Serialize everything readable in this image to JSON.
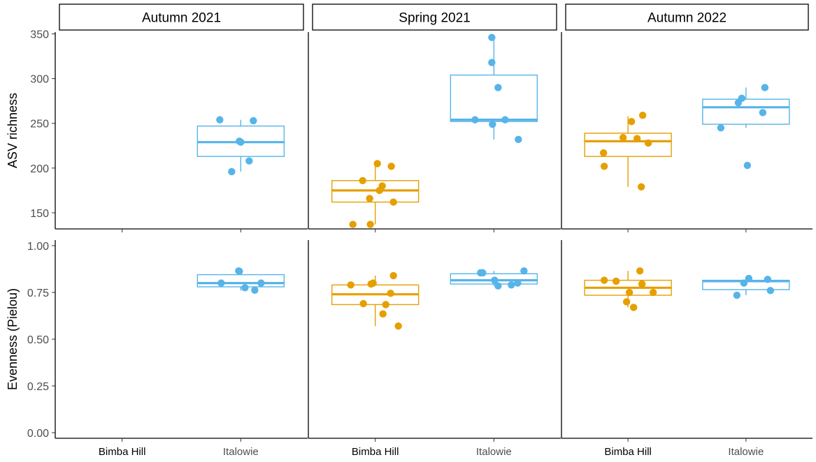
{
  "chart_data": {
    "type": "boxplot",
    "facet_titles": [
      "Autumn 2021",
      "Spring 2021",
      "Autumn 2022"
    ],
    "categories": [
      "Bimba Hill",
      "Italowie"
    ],
    "series_colors": {
      "Bimba Hill": "#E69F00",
      "Italowie": "#56B4E9"
    },
    "rows": [
      {
        "ylabel": "ASV richness",
        "ylim": [
          132,
          352
        ],
        "ticks": [
          150,
          200,
          250,
          300,
          350
        ],
        "tick_labels": [
          "150",
          "200",
          "250",
          "300",
          "350"
        ],
        "panels": [
          {
            "facet": "Autumn 2021",
            "groups": [
              {
                "category": "Bimba Hill",
                "box": null,
                "points": []
              },
              {
                "category": "Italowie",
                "box": {
                  "q1": 213,
                  "median": 229,
                  "q3": 247,
                  "whisker_low": 196,
                  "whisker_high": 254
                },
                "points": [
                  [
                    -0.3,
                    254
                  ],
                  [
                    -0.13,
                    196
                  ],
                  [
                    -0.02,
                    230
                  ],
                  [
                    0.0,
                    229
                  ],
                  [
                    0.12,
                    208
                  ],
                  [
                    0.18,
                    253
                  ]
                ]
              }
            ]
          },
          {
            "facet": "Spring 2021",
            "groups": [
              {
                "category": "Bimba Hill",
                "box": {
                  "q1": 162,
                  "median": 175,
                  "q3": 186,
                  "whisker_low": 137,
                  "whisker_high": 205
                },
                "points": [
                  [
                    -0.32,
                    137
                  ],
                  [
                    -0.18,
                    186
                  ],
                  [
                    -0.07,
                    137
                  ],
                  [
                    -0.08,
                    166
                  ],
                  [
                    0.03,
                    205
                  ],
                  [
                    0.06,
                    175
                  ],
                  [
                    0.1,
                    180
                  ],
                  [
                    0.23,
                    202
                  ],
                  [
                    0.26,
                    162
                  ]
                ]
              },
              {
                "category": "Italowie",
                "box": {
                  "q1": 252,
                  "median": 254,
                  "q3": 304,
                  "whisker_low": 232,
                  "whisker_high": 346
                },
                "points": [
                  [
                    -0.27,
                    254
                  ],
                  [
                    -0.03,
                    346
                  ],
                  [
                    -0.03,
                    318
                  ],
                  [
                    -0.02,
                    249
                  ],
                  [
                    0.06,
                    290
                  ],
                  [
                    0.16,
                    254
                  ],
                  [
                    0.35,
                    232
                  ]
                ]
              }
            ]
          },
          {
            "facet": "Autumn 2022",
            "groups": [
              {
                "category": "Bimba Hill",
                "box": {
                  "q1": 213,
                  "median": 230,
                  "q3": 239,
                  "whisker_low": 179,
                  "whisker_high": 258
                },
                "points": [
                  [
                    -0.34,
                    202
                  ],
                  [
                    -0.35,
                    217
                  ],
                  [
                    -0.07,
                    234
                  ],
                  [
                    0.05,
                    252
                  ],
                  [
                    0.13,
                    233
                  ],
                  [
                    0.19,
                    179
                  ],
                  [
                    0.21,
                    259
                  ],
                  [
                    0.29,
                    228
                  ]
                ]
              },
              {
                "category": "Italowie",
                "box": {
                  "q1": 249,
                  "median": 268,
                  "q3": 277,
                  "whisker_low": 245,
                  "whisker_high": 290
                },
                "points": [
                  [
                    -0.36,
                    245
                  ],
                  [
                    -0.11,
                    273
                  ],
                  [
                    -0.06,
                    278
                  ],
                  [
                    0.02,
                    203
                  ],
                  [
                    0.24,
                    262
                  ],
                  [
                    0.27,
                    290
                  ]
                ]
              }
            ]
          }
        ]
      },
      {
        "ylabel": "Evenness (Pielou)",
        "ylim": [
          -0.03,
          1.03
        ],
        "ticks": [
          0,
          0.25,
          0.5,
          0.75,
          1.0
        ],
        "tick_labels": [
          "0.00",
          "0.25",
          "0.50",
          "0.75",
          "1.00"
        ],
        "panels": [
          {
            "facet": "Autumn 2021",
            "groups": [
              {
                "category": "Bimba Hill",
                "box": null,
                "points": []
              },
              {
                "category": "Italowie",
                "box": {
                  "q1": 0.78,
                  "median": 0.8,
                  "q3": 0.845,
                  "whisker_low": 0.76,
                  "whisker_high": 0.865
                },
                "points": [
                  [
                    -0.28,
                    0.8
                  ],
                  [
                    -0.03,
                    0.865
                  ],
                  [
                    -0.02,
                    0.863
                  ],
                  [
                    0.06,
                    0.775
                  ],
                  [
                    0.2,
                    0.762
                  ],
                  [
                    0.29,
                    0.8
                  ]
                ]
              }
            ]
          },
          {
            "facet": "Spring 2021",
            "groups": [
              {
                "category": "Bimba Hill",
                "box": {
                  "q1": 0.685,
                  "median": 0.74,
                  "q3": 0.79,
                  "whisker_low": 0.57,
                  "whisker_high": 0.84
                },
                "points": [
                  [
                    -0.35,
                    0.79
                  ],
                  [
                    -0.17,
                    0.69
                  ],
                  [
                    -0.06,
                    0.795
                  ],
                  [
                    -0.03,
                    0.8
                  ],
                  [
                    0.11,
                    0.635
                  ],
                  [
                    0.15,
                    0.685
                  ],
                  [
                    0.22,
                    0.745
                  ],
                  [
                    0.26,
                    0.84
                  ],
                  [
                    0.33,
                    0.57
                  ]
                ]
              },
              {
                "category": "Italowie",
                "box": {
                  "q1": 0.795,
                  "median": 0.815,
                  "q3": 0.85,
                  "whisker_low": 0.785,
                  "whisker_high": 0.865
                },
                "points": [
                  [
                    -0.19,
                    0.855
                  ],
                  [
                    -0.16,
                    0.855
                  ],
                  [
                    0.01,
                    0.815
                  ],
                  [
                    0.06,
                    0.785
                  ],
                  [
                    0.25,
                    0.79
                  ],
                  [
                    0.34,
                    0.8
                  ],
                  [
                    0.43,
                    0.865
                  ]
                ]
              }
            ]
          },
          {
            "facet": "Autumn 2022",
            "groups": [
              {
                "category": "Bimba Hill",
                "box": {
                  "q1": 0.735,
                  "median": 0.775,
                  "q3": 0.815,
                  "whisker_low": 0.67,
                  "whisker_high": 0.865
                },
                "points": [
                  [
                    -0.34,
                    0.815
                  ],
                  [
                    -0.17,
                    0.81
                  ],
                  [
                    -0.02,
                    0.7
                  ],
                  [
                    0.02,
                    0.75
                  ],
                  [
                    0.08,
                    0.67
                  ],
                  [
                    0.17,
                    0.865
                  ],
                  [
                    0.2,
                    0.795
                  ],
                  [
                    0.36,
                    0.75
                  ]
                ]
              },
              {
                "category": "Italowie",
                "box": {
                  "q1": 0.765,
                  "median": 0.81,
                  "q3": 0.815,
                  "whisker_low": 0.735,
                  "whisker_high": 0.825
                },
                "points": [
                  [
                    -0.13,
                    0.735
                  ],
                  [
                    -0.03,
                    0.8
                  ],
                  [
                    0.04,
                    0.825
                  ],
                  [
                    0.31,
                    0.82
                  ],
                  [
                    0.35,
                    0.76
                  ]
                ]
              }
            ]
          }
        ]
      }
    ]
  }
}
